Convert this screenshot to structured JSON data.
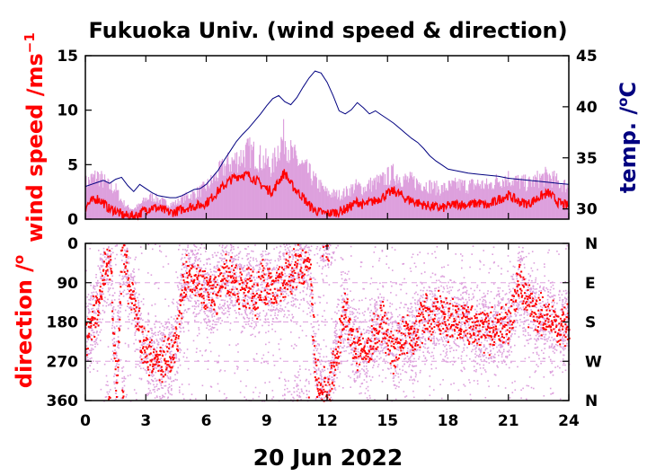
{
  "chart_data": [
    {
      "type": "line",
      "title": "Fukuoka Univ. (wind speed & direction)",
      "ylabel": "wind speed /ms",
      "ylabel_superscript": "−1",
      "y2label": "temp. /",
      "y2label_superscript": "o",
      "y2label_unit": "C",
      "xlim": [
        0,
        24
      ],
      "ylim": [
        0,
        15
      ],
      "y2lim": [
        29,
        45
      ],
      "y_ticks": [
        "0",
        "5",
        "10",
        "15"
      ],
      "y2_ticks": [
        "30",
        "35",
        "40",
        "45"
      ],
      "colors": {
        "wind_max": "#dda0dd",
        "wind_mean": "#ff0000",
        "temperature": "#000080"
      },
      "series": [
        {
          "key": "temperature",
          "axis": "right",
          "x": [
            0,
            0.3,
            0.6,
            0.9,
            1.2,
            1.5,
            1.8,
            2.1,
            2.4,
            2.7,
            3.0,
            3.3,
            3.6,
            3.9,
            4.2,
            4.5,
            4.8,
            5.1,
            5.4,
            5.7,
            6.0,
            6.3,
            6.6,
            6.9,
            7.2,
            7.5,
            7.8,
            8.1,
            8.4,
            8.7,
            9.0,
            9.3,
            9.6,
            9.9,
            10.2,
            10.5,
            10.8,
            11.1,
            11.4,
            11.7,
            12.0,
            12.3,
            12.6,
            12.9,
            13.2,
            13.5,
            13.8,
            14.1,
            14.4,
            14.7,
            15.0,
            15.3,
            15.6,
            15.9,
            16.2,
            16.5,
            16.8,
            17.1,
            17.4,
            17.7,
            18.0,
            18.5,
            19,
            19.5,
            20,
            20.5,
            21,
            21.5,
            22,
            22.5,
            23,
            23.5,
            24
          ],
          "y": [
            32.2,
            32.4,
            32.6,
            32.8,
            32.5,
            32.9,
            33.1,
            32.3,
            31.7,
            32.4,
            32.0,
            31.6,
            31.3,
            31.2,
            31.1,
            31.1,
            31.3,
            31.6,
            31.9,
            32.0,
            32.4,
            33.1,
            33.8,
            34.8,
            35.7,
            36.6,
            37.3,
            37.9,
            38.6,
            39.3,
            40.1,
            40.8,
            41.1,
            40.5,
            40.2,
            40.9,
            41.9,
            42.8,
            43.5,
            43.3,
            42.4,
            41.1,
            39.6,
            39.3,
            39.7,
            40.4,
            39.9,
            39.3,
            39.6,
            39.2,
            38.8,
            38.4,
            37.9,
            37.4,
            36.9,
            36.5,
            35.9,
            35.2,
            34.7,
            34.3,
            33.9,
            33.7,
            33.5,
            33.4,
            33.3,
            33.2,
            33.0,
            32.9,
            32.8,
            32.7,
            32.6,
            32.5,
            32.4
          ]
        },
        {
          "key": "wind_max",
          "axis": "left",
          "x": [
            0,
            0.3,
            0.6,
            0.9,
            1.2,
            1.5,
            1.8,
            2.1,
            2.4,
            2.7,
            3.0,
            3.3,
            3.6,
            3.9,
            4.2,
            4.5,
            4.8,
            5.1,
            5.4,
            5.7,
            6.0,
            6.3,
            6.6,
            6.9,
            7.2,
            7.5,
            7.8,
            8.1,
            8.4,
            8.7,
            9.0,
            9.3,
            9.6,
            9.9,
            10.2,
            10.5,
            10.8,
            11.1,
            11.4,
            11.7,
            12.0,
            12.3,
            12.6,
            12.9,
            13.2,
            13.5,
            13.8,
            14.1,
            14.4,
            14.7,
            15.0,
            15.3,
            15.6,
            15.9,
            16.2,
            16.5,
            16.8,
            17.1,
            17.4,
            17.7,
            18.0,
            18.5,
            19,
            19.5,
            20,
            20.5,
            21,
            21.5,
            22,
            22.5,
            23,
            23.5,
            24
          ],
          "y": [
            3.5,
            4.0,
            4.3,
            3.8,
            3.2,
            3.0,
            1.8,
            1.2,
            1.0,
            1.4,
            2.0,
            2.2,
            2.0,
            1.7,
            1.5,
            1.6,
            2.0,
            2.3,
            2.5,
            2.8,
            3.2,
            3.8,
            4.5,
            5.2,
            5.6,
            5.9,
            6.3,
            6.7,
            6.4,
            6.0,
            5.6,
            5.2,
            7.2,
            8.2,
            6.5,
            5.8,
            5.2,
            4.6,
            3.8,
            3.2,
            2.6,
            2.5,
            2.4,
            2.6,
            3.0,
            3.3,
            3.0,
            3.4,
            3.6,
            3.8,
            4.2,
            4.5,
            4.2,
            3.9,
            3.8,
            3.6,
            3.5,
            3.3,
            3.1,
            3.0,
            3.2,
            3.4,
            3.3,
            3.5,
            3.3,
            3.9,
            4.1,
            3.7,
            3.5,
            4.0,
            4.3,
            3.6,
            3.2
          ]
        },
        {
          "key": "wind_mean",
          "axis": "left",
          "x": [
            0,
            0.3,
            0.6,
            0.9,
            1.2,
            1.5,
            1.8,
            2.1,
            2.4,
            2.7,
            3.0,
            3.3,
            3.6,
            3.9,
            4.2,
            4.5,
            4.8,
            5.1,
            5.4,
            5.7,
            6.0,
            6.3,
            6.6,
            6.9,
            7.2,
            7.5,
            7.8,
            8.1,
            8.4,
            8.7,
            9.0,
            9.3,
            9.6,
            9.9,
            10.2,
            10.5,
            10.8,
            11.1,
            11.4,
            11.7,
            12.0,
            12.3,
            12.6,
            12.9,
            13.2,
            13.5,
            13.8,
            14.1,
            14.4,
            14.7,
            15.0,
            15.3,
            15.6,
            15.9,
            16.2,
            16.5,
            16.8,
            17.1,
            17.4,
            17.7,
            18.0,
            18.5,
            19,
            19.5,
            20,
            20.5,
            21,
            21.5,
            22,
            22.5,
            23,
            23.5,
            24
          ],
          "y": [
            1.2,
            1.6,
            1.9,
            1.5,
            0.9,
            0.8,
            0.4,
            0.3,
            0.3,
            0.5,
            0.9,
            1.1,
            1.0,
            0.8,
            0.6,
            0.7,
            0.9,
            1.1,
            1.2,
            1.3,
            1.5,
            2.0,
            2.6,
            3.1,
            3.6,
            3.9,
            4.1,
            4.0,
            3.7,
            3.2,
            2.8,
            2.5,
            3.5,
            4.3,
            3.2,
            2.6,
            2.0,
            1.3,
            0.8,
            0.6,
            0.5,
            0.6,
            0.7,
            0.9,
            1.2,
            1.6,
            1.3,
            1.5,
            1.7,
            2.0,
            2.3,
            2.6,
            2.3,
            1.9,
            1.7,
            1.5,
            1.3,
            1.2,
            1.1,
            1.0,
            1.2,
            1.4,
            1.3,
            1.5,
            1.2,
            1.8,
            2.2,
            1.6,
            1.4,
            2.0,
            2.4,
            1.5,
            1.2
          ]
        }
      ]
    },
    {
      "type": "scatter",
      "ylabel": "direction /",
      "ylabel_superscript": "o",
      "xlabel": "20 Jun 2022",
      "xlim": [
        0,
        24
      ],
      "ylim": [
        360,
        0
      ],
      "x_ticks": [
        "0",
        "3",
        "6",
        "9",
        "12",
        "15",
        "18",
        "21",
        "24"
      ],
      "y_ticks": [
        "0",
        "90",
        "180",
        "270",
        "360"
      ],
      "y2_ticks": [
        "N",
        "E",
        "S",
        "W",
        "N"
      ],
      "colors": {
        "direction_spread": "#dda0dd",
        "direction_mean": "#ff0000"
      },
      "series": [
        {
          "key": "direction_mean",
          "x": [
            0,
            0.3,
            0.6,
            0.9,
            1.2,
            1.5,
            1.8,
            2.1,
            2.4,
            2.7,
            3.0,
            3.3,
            3.6,
            3.9,
            4.2,
            4.5,
            4.8,
            5.1,
            5.4,
            5.7,
            6.0,
            6.3,
            6.6,
            6.9,
            7.2,
            7.5,
            7.8,
            8.1,
            8.4,
            8.7,
            9.0,
            9.3,
            9.6,
            9.9,
            10.2,
            10.5,
            10.8,
            11.1,
            11.4,
            11.7,
            12.0,
            12.3,
            12.6,
            12.9,
            13.2,
            13.5,
            13.8,
            14.1,
            14.4,
            14.7,
            15.0,
            15.3,
            15.6,
            15.9,
            16.2,
            16.5,
            16.8,
            17.1,
            17.4,
            17.7,
            18.0,
            18.5,
            19,
            19.5,
            20,
            20.5,
            21,
            21.5,
            22,
            22.5,
            23,
            23.5,
            24
          ],
          "y": [
            210,
            170,
            140,
            60,
            20,
            340,
            10,
            90,
            140,
            210,
            250,
            265,
            275,
            270,
            260,
            230,
            100,
            60,
            80,
            100,
            110,
            120,
            95,
            80,
            70,
            100,
            110,
            90,
            130,
            80,
            90,
            120,
            85,
            70,
            75,
            40,
            60,
            30,
            300,
            330,
            350,
            280,
            200,
            150,
            220,
            240,
            260,
            230,
            200,
            180,
            210,
            250,
            230,
            200,
            220,
            190,
            170,
            175,
            160,
            170,
            180,
            175,
            185,
            195,
            200,
            190,
            180,
            85,
            150,
            165,
            170,
            185,
            180
          ]
        }
      ]
    }
  ]
}
